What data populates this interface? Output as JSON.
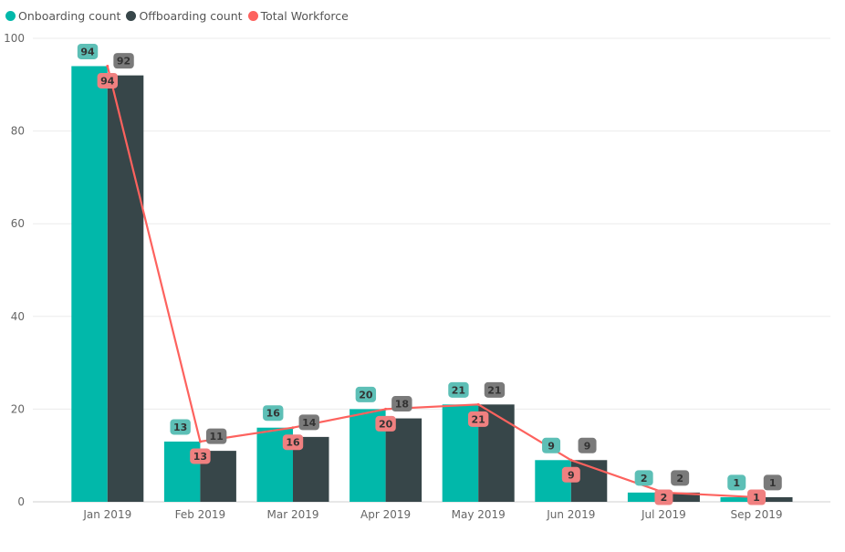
{
  "chart_data": {
    "type": "bar",
    "categories": [
      "Jan 2019",
      "Feb 2019",
      "Mar 2019",
      "Apr 2019",
      "May 2019",
      "Jun 2019",
      "Jul 2019",
      "Sep 2019"
    ],
    "series": [
      {
        "name": "Onboarding count",
        "type": "bar",
        "color": "#01B8AA",
        "label_color": "#5DBFB6",
        "values": [
          94,
          13,
          16,
          20,
          21,
          9,
          2,
          1
        ]
      },
      {
        "name": "Offboarding count",
        "type": "bar",
        "color": "#374649",
        "label_color": "#7A7A7A",
        "values": [
          92,
          11,
          14,
          18,
          21,
          9,
          2,
          1
        ]
      },
      {
        "name": "Total Workforce",
        "type": "line",
        "color": "#FD625E",
        "label_color": "#F08080",
        "values": [
          94,
          13,
          16,
          20,
          21,
          9,
          2,
          1
        ]
      }
    ],
    "y_ticks": [
      0,
      20,
      40,
      60,
      80,
      100
    ],
    "ylim": [
      0,
      100
    ],
    "grid": true,
    "legend_position": "top-left",
    "title": "",
    "xlabel": "",
    "ylabel": ""
  }
}
